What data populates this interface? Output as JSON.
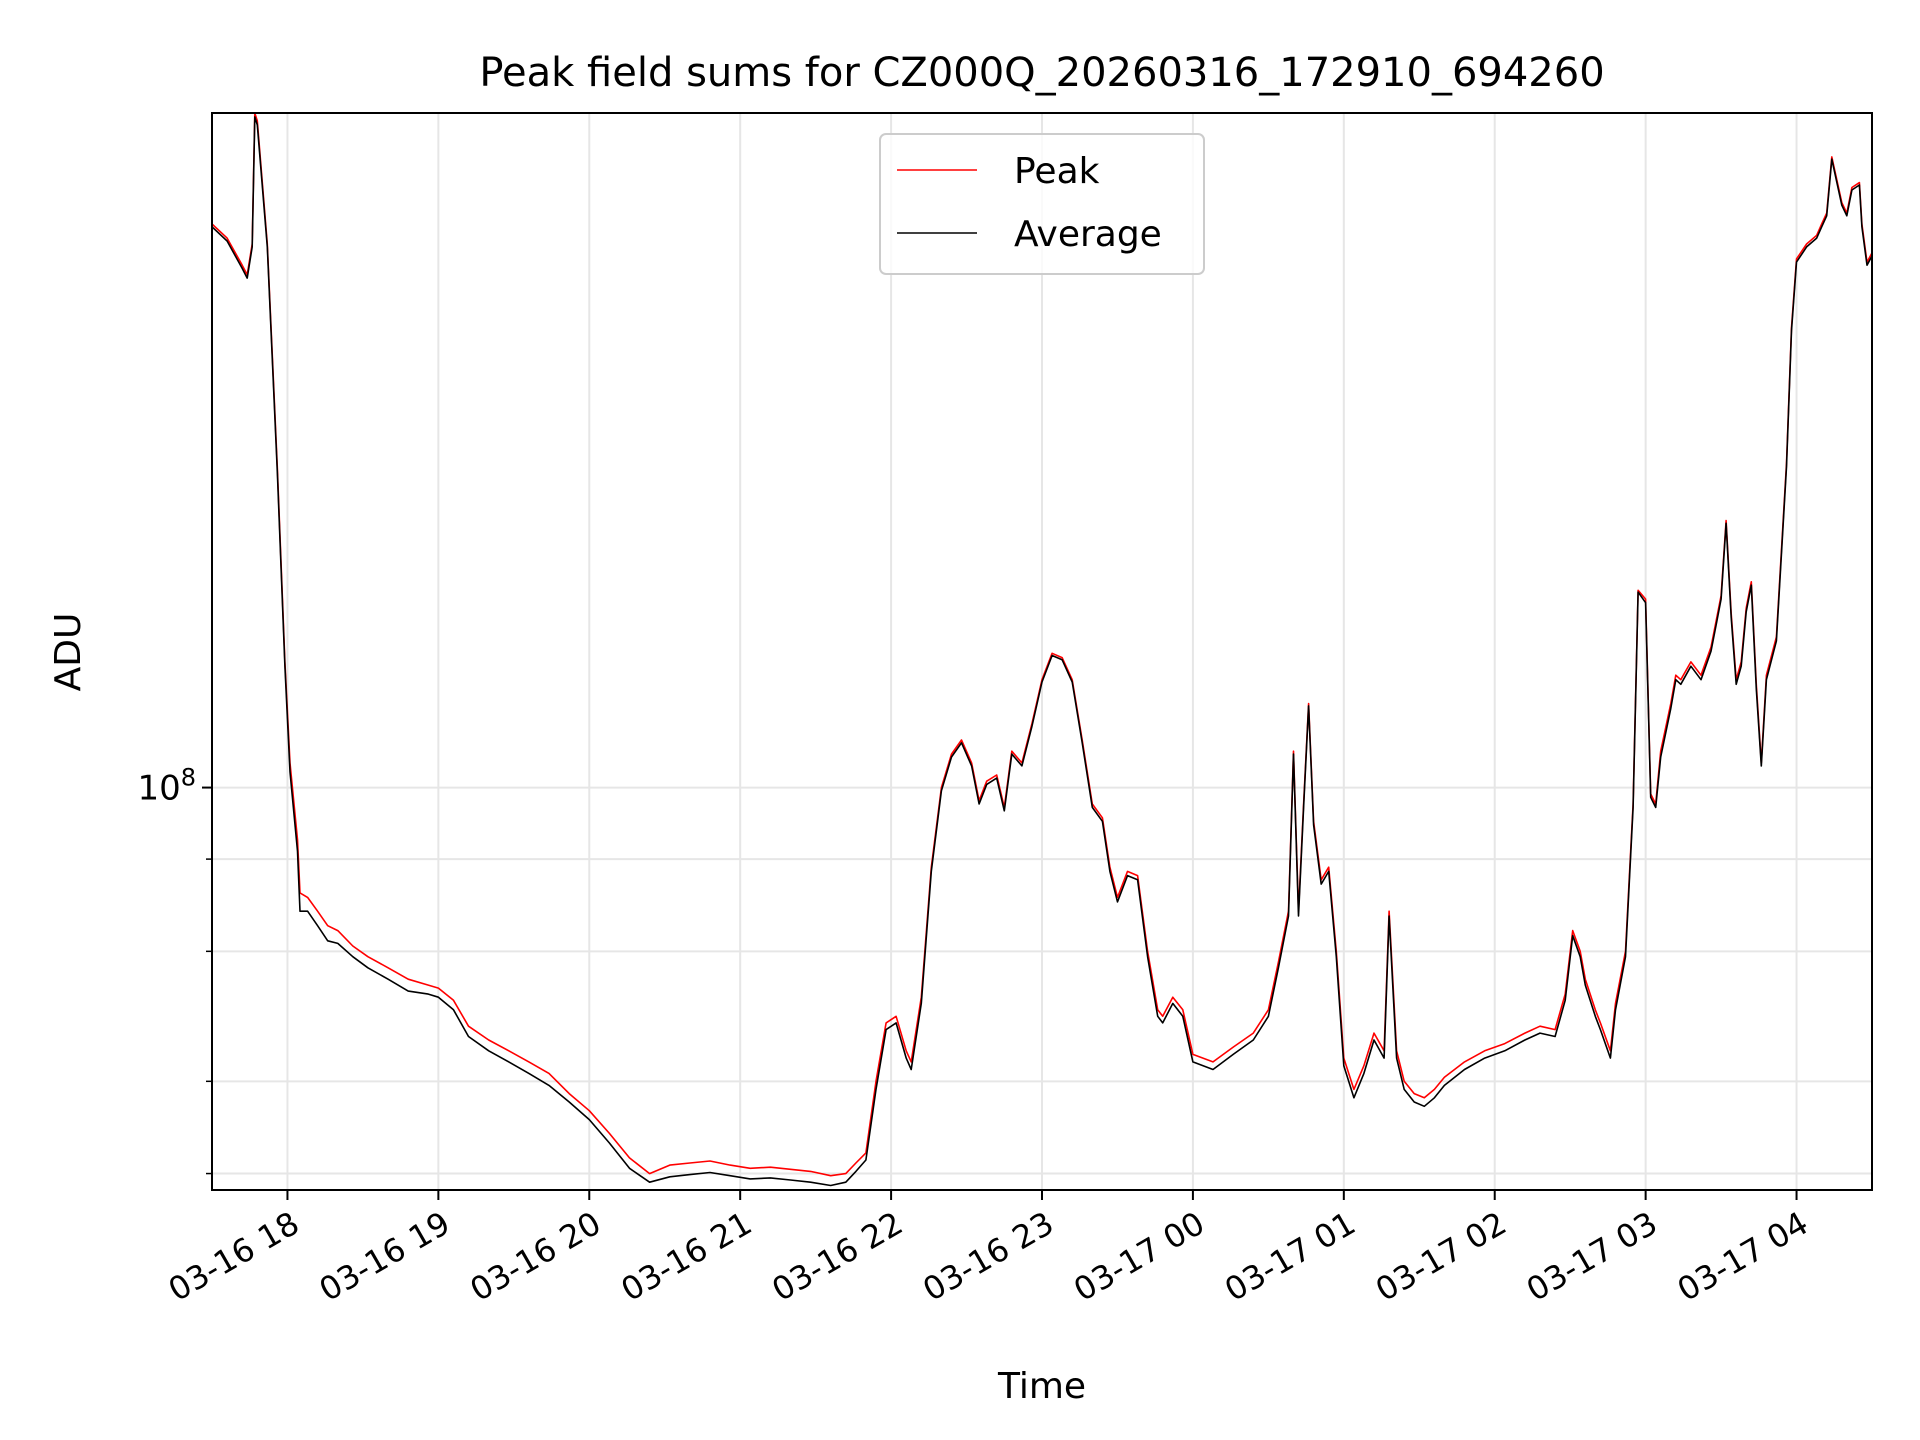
{
  "chart_data": {
    "type": "line",
    "title": "Peak field sums for CZ000Q_20260316_172910_694260",
    "xlabel": "Time",
    "ylabel": "ADU",
    "x_unit": "datetime",
    "xlim": [
      "2026-03-16 17:30",
      "2026-03-17 04:30"
    ],
    "ylim": [
      28500000,
      820000000
    ],
    "yscale": "log",
    "grid": true,
    "legend_location": "upper center",
    "x_tick_labels": [
      "03-16 18",
      "03-16 19",
      "03-16 20",
      "03-16 21",
      "03-16 22",
      "03-16 23",
      "03-17 00",
      "03-17 01",
      "03-17 02",
      "03-17 03",
      "03-17 04"
    ],
    "y_major_tick": {
      "base": "10",
      "exponent": "8"
    },
    "y_minor_ticks": [
      30000000,
      40000000,
      60000000,
      80000000
    ],
    "series": [
      {
        "name": "Peak",
        "color": "#ff0000",
        "x": [
          "2026-03-16 17:30",
          "2026-03-16 17:36",
          "2026-03-16 17:42",
          "2026-03-16 17:44",
          "2026-03-16 17:46",
          "2026-03-16 17:47",
          "2026-03-16 17:48",
          "2026-03-16 17:52",
          "2026-03-16 17:56",
          "2026-03-16 17:59",
          "2026-03-16 18:01",
          "2026-03-16 18:04",
          "2026-03-16 18:05",
          "2026-03-16 18:08",
          "2026-03-16 18:12",
          "2026-03-16 18:16",
          "2026-03-16 18:20",
          "2026-03-16 18:26",
          "2026-03-16 18:32",
          "2026-03-16 18:40",
          "2026-03-16 18:48",
          "2026-03-16 18:56",
          "2026-03-16 19:00",
          "2026-03-16 19:06",
          "2026-03-16 19:12",
          "2026-03-16 19:20",
          "2026-03-16 19:28",
          "2026-03-16 19:36",
          "2026-03-16 19:44",
          "2026-03-16 19:52",
          "2026-03-16 20:00",
          "2026-03-16 20:08",
          "2026-03-16 20:16",
          "2026-03-16 20:24",
          "2026-03-16 20:32",
          "2026-03-16 20:40",
          "2026-03-16 20:48",
          "2026-03-16 20:56",
          "2026-03-16 21:04",
          "2026-03-16 21:12",
          "2026-03-16 21:20",
          "2026-03-16 21:28",
          "2026-03-16 21:36",
          "2026-03-16 21:42",
          "2026-03-16 21:46",
          "2026-03-16 21:50",
          "2026-03-16 21:54",
          "2026-03-16 21:58",
          "2026-03-16 22:02",
          "2026-03-16 22:06",
          "2026-03-16 22:08",
          "2026-03-16 22:12",
          "2026-03-16 22:16",
          "2026-03-16 22:20",
          "2026-03-16 22:24",
          "2026-03-16 22:28",
          "2026-03-16 22:32",
          "2026-03-16 22:35",
          "2026-03-16 22:38",
          "2026-03-16 22:42",
          "2026-03-16 22:45",
          "2026-03-16 22:48",
          "2026-03-16 22:52",
          "2026-03-16 22:56",
          "2026-03-16 23:00",
          "2026-03-16 23:04",
          "2026-03-16 23:08",
          "2026-03-16 23:12",
          "2026-03-16 23:16",
          "2026-03-16 23:20",
          "2026-03-16 23:24",
          "2026-03-16 23:27",
          "2026-03-16 23:30",
          "2026-03-16 23:34",
          "2026-03-16 23:38",
          "2026-03-16 23:42",
          "2026-03-16 23:46",
          "2026-03-16 23:48",
          "2026-03-16 23:52",
          "2026-03-16 23:56",
          "2026-03-17 00:00",
          "2026-03-17 00:08",
          "2026-03-17 00:16",
          "2026-03-17 00:24",
          "2026-03-17 00:30",
          "2026-03-17 00:34",
          "2026-03-17 00:38",
          "2026-03-17 00:40",
          "2026-03-17 00:42",
          "2026-03-17 00:44",
          "2026-03-17 00:46",
          "2026-03-17 00:48",
          "2026-03-17 00:51",
          "2026-03-17 00:54",
          "2026-03-17 00:57",
          "2026-03-17 01:00",
          "2026-03-17 01:04",
          "2026-03-17 01:08",
          "2026-03-17 01:12",
          "2026-03-17 01:16",
          "2026-03-17 01:18",
          "2026-03-17 01:21",
          "2026-03-17 01:24",
          "2026-03-17 01:28",
          "2026-03-17 01:32",
          "2026-03-17 01:36",
          "2026-03-17 01:40",
          "2026-03-17 01:48",
          "2026-03-17 01:56",
          "2026-03-17 02:04",
          "2026-03-17 02:12",
          "2026-03-17 02:18",
          "2026-03-17 02:24",
          "2026-03-17 02:28",
          "2026-03-17 02:31",
          "2026-03-17 02:34",
          "2026-03-17 02:36",
          "2026-03-17 02:40",
          "2026-03-17 02:42",
          "2026-03-17 02:46",
          "2026-03-17 02:48",
          "2026-03-17 02:52",
          "2026-03-17 02:55",
          "2026-03-17 02:57",
          "2026-03-17 03:00",
          "2026-03-17 03:02",
          "2026-03-17 03:04",
          "2026-03-17 03:06",
          "2026-03-17 03:10",
          "2026-03-17 03:12",
          "2026-03-17 03:14",
          "2026-03-17 03:18",
          "2026-03-17 03:22",
          "2026-03-17 03:26",
          "2026-03-17 03:28",
          "2026-03-17 03:30",
          "2026-03-17 03:32",
          "2026-03-17 03:34",
          "2026-03-17 03:36",
          "2026-03-17 03:38",
          "2026-03-17 03:40",
          "2026-03-17 03:42",
          "2026-03-17 03:44",
          "2026-03-17 03:46",
          "2026-03-17 03:48",
          "2026-03-17 03:52",
          "2026-03-17 03:56",
          "2026-03-17 03:58",
          "2026-03-17 04:00",
          "2026-03-17 04:04",
          "2026-03-17 04:08",
          "2026-03-17 04:10",
          "2026-03-17 04:12",
          "2026-03-17 04:14",
          "2026-03-17 04:18",
          "2026-03-17 04:20",
          "2026-03-17 04:22",
          "2026-03-17 04:25",
          "2026-03-17 04:26",
          "2026-03-17 04:28",
          "2026-03-17 04:30"
        ],
        "y": [
          580000000,
          555000000,
          510000000,
          495000000,
          545000000,
          820000000,
          800000000,
          545000000,
          270000000,
          148000000,
          108000000,
          85000000,
          72000000,
          71000000,
          68000000,
          65000000,
          64000000,
          61000000,
          59000000,
          57000000,
          55000000,
          54000000,
          53500000,
          51500000,
          47500000,
          45500000,
          44000000,
          42500000,
          41000000,
          38500000,
          36500000,
          34000000,
          31500000,
          30000000,
          30800000,
          31000000,
          31200000,
          30800000,
          30500000,
          30600000,
          30400000,
          30200000,
          29800000,
          30000000,
          31000000,
          32000000,
          40000000,
          48000000,
          49000000,
          44000000,
          42500000,
          52000000,
          78000000,
          100000000,
          111000000,
          116000000,
          108000000,
          96000000,
          102000000,
          104000000,
          94000000,
          112000000,
          108000000,
          122000000,
          140000000,
          152000000,
          150000000,
          140000000,
          116000000,
          95000000,
          91000000,
          78000000,
          71000000,
          77000000,
          76000000,
          60000000,
          50000000,
          49000000,
          52000000,
          50000000,
          43500000,
          42500000,
          44500000,
          46500000,
          50000000,
          58000000,
          68000000,
          112000000,
          68000000,
          95000000,
          130000000,
          90000000,
          75000000,
          78000000,
          60000000,
          43000000,
          39000000,
          42000000,
          46500000,
          44000000,
          68000000,
          44000000,
          40000000,
          38500000,
          38000000,
          39000000,
          40500000,
          42500000,
          44000000,
          45000000,
          46500000,
          47500000,
          47000000,
          52500000,
          64000000,
          60000000,
          55000000,
          50000000,
          48000000,
          44000000,
          51000000,
          60000000,
          95000000,
          185000000,
          180000000,
          98000000,
          95000000,
          112000000,
          130000000,
          142000000,
          140000000,
          148000000,
          142000000,
          155000000,
          168000000,
          182000000,
          230000000,
          172000000,
          140000000,
          148000000,
          175000000,
          190000000,
          138000000,
          108000000,
          142000000,
          160000000,
          275000000,
          420000000,
          520000000,
          545000000,
          560000000,
          580000000,
          600000000,
          715000000,
          620000000,
          600000000,
          650000000,
          660000000,
          580000000,
          515000000,
          530000000
        ]
      },
      {
        "name": "Average",
        "color": "#000000",
        "x": [
          "2026-03-16 17:30",
          "2026-03-16 17:36",
          "2026-03-16 17:42",
          "2026-03-16 17:44",
          "2026-03-16 17:46",
          "2026-03-16 17:47",
          "2026-03-16 17:48",
          "2026-03-16 17:52",
          "2026-03-16 17:56",
          "2026-03-16 17:59",
          "2026-03-16 18:01",
          "2026-03-16 18:04",
          "2026-03-16 18:05",
          "2026-03-16 18:08",
          "2026-03-16 18:12",
          "2026-03-16 18:16",
          "2026-03-16 18:20",
          "2026-03-16 18:26",
          "2026-03-16 18:32",
          "2026-03-16 18:40",
          "2026-03-16 18:48",
          "2026-03-16 18:56",
          "2026-03-16 19:00",
          "2026-03-16 19:06",
          "2026-03-16 19:12",
          "2026-03-16 19:20",
          "2026-03-16 19:28",
          "2026-03-16 19:36",
          "2026-03-16 19:44",
          "2026-03-16 19:52",
          "2026-03-16 20:00",
          "2026-03-16 20:08",
          "2026-03-16 20:16",
          "2026-03-16 20:24",
          "2026-03-16 20:32",
          "2026-03-16 20:40",
          "2026-03-16 20:48",
          "2026-03-16 20:56",
          "2026-03-16 21:04",
          "2026-03-16 21:12",
          "2026-03-16 21:20",
          "2026-03-16 21:28",
          "2026-03-16 21:36",
          "2026-03-16 21:42",
          "2026-03-16 21:46",
          "2026-03-16 21:50",
          "2026-03-16 21:54",
          "2026-03-16 21:58",
          "2026-03-16 22:02",
          "2026-03-16 22:06",
          "2026-03-16 22:08",
          "2026-03-16 22:12",
          "2026-03-16 22:16",
          "2026-03-16 22:20",
          "2026-03-16 22:24",
          "2026-03-16 22:28",
          "2026-03-16 22:32",
          "2026-03-16 22:35",
          "2026-03-16 22:38",
          "2026-03-16 22:42",
          "2026-03-16 22:45",
          "2026-03-16 22:48",
          "2026-03-16 22:52",
          "2026-03-16 22:56",
          "2026-03-16 23:00",
          "2026-03-16 23:04",
          "2026-03-16 23:08",
          "2026-03-16 23:12",
          "2026-03-16 23:16",
          "2026-03-16 23:20",
          "2026-03-16 23:24",
          "2026-03-16 23:27",
          "2026-03-16 23:30",
          "2026-03-16 23:34",
          "2026-03-16 23:38",
          "2026-03-16 23:42",
          "2026-03-16 23:46",
          "2026-03-16 23:48",
          "2026-03-16 23:52",
          "2026-03-16 23:56",
          "2026-03-17 00:00",
          "2026-03-17 00:08",
          "2026-03-17 00:16",
          "2026-03-17 00:24",
          "2026-03-17 00:30",
          "2026-03-17 00:34",
          "2026-03-17 00:38",
          "2026-03-17 00:40",
          "2026-03-17 00:42",
          "2026-03-17 00:44",
          "2026-03-17 00:46",
          "2026-03-17 00:48",
          "2026-03-17 00:51",
          "2026-03-17 00:54",
          "2026-03-17 00:57",
          "2026-03-17 01:00",
          "2026-03-17 01:04",
          "2026-03-17 01:08",
          "2026-03-17 01:12",
          "2026-03-17 01:16",
          "2026-03-17 01:18",
          "2026-03-17 01:21",
          "2026-03-17 01:24",
          "2026-03-17 01:28",
          "2026-03-17 01:32",
          "2026-03-17 01:36",
          "2026-03-17 01:40",
          "2026-03-17 01:48",
          "2026-03-17 01:56",
          "2026-03-17 02:04",
          "2026-03-17 02:12",
          "2026-03-17 02:18",
          "2026-03-17 02:24",
          "2026-03-17 02:28",
          "2026-03-17 02:31",
          "2026-03-17 02:34",
          "2026-03-17 02:36",
          "2026-03-17 02:40",
          "2026-03-17 02:42",
          "2026-03-17 02:46",
          "2026-03-17 02:48",
          "2026-03-17 02:52",
          "2026-03-17 02:55",
          "2026-03-17 02:57",
          "2026-03-17 03:00",
          "2026-03-17 03:02",
          "2026-03-17 03:04",
          "2026-03-17 03:06",
          "2026-03-17 03:10",
          "2026-03-17 03:12",
          "2026-03-17 03:14",
          "2026-03-17 03:18",
          "2026-03-17 03:22",
          "2026-03-17 03:26",
          "2026-03-17 03:28",
          "2026-03-17 03:30",
          "2026-03-17 03:32",
          "2026-03-17 03:34",
          "2026-03-17 03:36",
          "2026-03-17 03:38",
          "2026-03-17 03:40",
          "2026-03-17 03:42",
          "2026-03-17 03:44",
          "2026-03-17 03:46",
          "2026-03-17 03:48",
          "2026-03-17 03:52",
          "2026-03-17 03:56",
          "2026-03-17 03:58",
          "2026-03-17 04:00",
          "2026-03-17 04:04",
          "2026-03-17 04:08",
          "2026-03-17 04:10",
          "2026-03-17 04:12",
          "2026-03-17 04:14",
          "2026-03-17 04:18",
          "2026-03-17 04:20",
          "2026-03-17 04:22",
          "2026-03-17 04:25",
          "2026-03-17 04:26",
          "2026-03-17 04:28",
          "2026-03-17 04:30"
        ],
        "y": [
          575000000,
          550000000,
          505000000,
          490000000,
          540000000,
          810000000,
          790000000,
          540000000,
          266000000,
          146000000,
          105000000,
          82000000,
          68000000,
          68000000,
          65000000,
          62000000,
          61500000,
          59000000,
          57000000,
          55000000,
          53000000,
          52500000,
          52000000,
          50000000,
          46000000,
          44000000,
          42500000,
          41000000,
          39500000,
          37500000,
          35500000,
          33000000,
          30500000,
          29200000,
          29700000,
          29900000,
          30100000,
          29800000,
          29500000,
          29600000,
          29400000,
          29200000,
          28900000,
          29200000,
          30200000,
          31300000,
          39000000,
          47000000,
          48000000,
          43000000,
          41500000,
          51000000,
          77000000,
          99000000,
          110000000,
          115000000,
          107000000,
          95000000,
          101000000,
          103000000,
          93000000,
          111000000,
          107000000,
          121000000,
          139000000,
          151000000,
          149000000,
          139000000,
          115000000,
          94000000,
          90000000,
          77000000,
          70000000,
          76000000,
          75000000,
          59000000,
          49000000,
          48000000,
          51000000,
          49000000,
          42500000,
          41500000,
          43500000,
          45500000,
          49000000,
          57000000,
          67000000,
          111000000,
          67000000,
          94000000,
          129000000,
          89000000,
          74000000,
          77000000,
          59000000,
          42000000,
          38000000,
          41000000,
          45500000,
          43000000,
          67000000,
          43000000,
          39000000,
          37500000,
          37000000,
          38000000,
          39500000,
          41500000,
          43000000,
          44000000,
          45500000,
          46500000,
          46000000,
          51500000,
          63000000,
          59000000,
          54000000,
          49000000,
          47000000,
          43000000,
          50000000,
          59000000,
          94000000,
          184000000,
          178000000,
          97000000,
          94000000,
          110000000,
          128000000,
          140000000,
          138000000,
          146000000,
          140000000,
          153000000,
          166000000,
          180000000,
          228000000,
          170000000,
          138000000,
          146000000,
          173000000,
          188000000,
          136000000,
          107000000,
          140000000,
          158000000,
          272000000,
          416000000,
          515000000,
          540000000,
          555000000,
          575000000,
          595000000,
          710000000,
          615000000,
          595000000,
          645000000,
          655000000,
          575000000,
          510000000,
          525000000
        ]
      }
    ]
  }
}
